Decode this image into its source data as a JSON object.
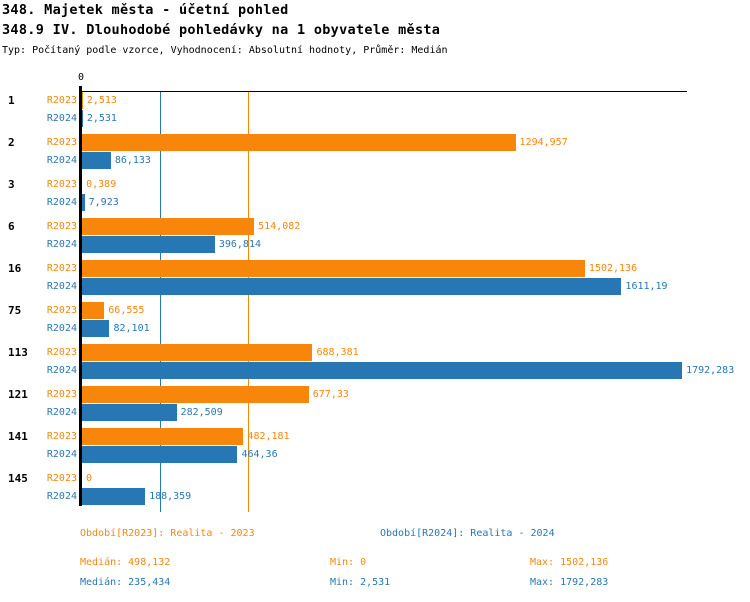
{
  "header": {
    "title_line1": "348. Majetek města - účetní pohled",
    "title_line2": "348.9 IV. Dlouhodobé pohledávky na 1 obyvatele města",
    "subtitle": "Typ: Počítaný podle vzorce, Vyhodnocení: Absolutní hodnoty, Průměr: Medián"
  },
  "colors": {
    "r2023": "#F8860B",
    "r2024": "#2777B5",
    "axis": "#000000"
  },
  "chart_data": {
    "type": "bar",
    "orientation": "horizontal",
    "title": "348.9 IV. Dlouhodobé pohledávky na 1 obyvatele města",
    "xlabel": "",
    "ylabel": "",
    "xlim": [
      0,
      1810
    ],
    "zero_tick_label": "0",
    "grid": false,
    "legend_position": "bottom",
    "categories": [
      "1",
      "2",
      "3",
      "6",
      "16",
      "75",
      "113",
      "121",
      "141",
      "145"
    ],
    "series": [
      {
        "name": "R2023",
        "color": "#F8860B",
        "values": [
          2.513,
          1294.957,
          0.389,
          514.082,
          1502.136,
          66.555,
          688.381,
          677.33,
          482.181,
          0
        ],
        "labels": [
          "2,513",
          "1294,957",
          "0,389",
          "514,082",
          "1502,136",
          "66,555",
          "688,381",
          "677,33",
          "482,181",
          "0"
        ],
        "median": 498.132
      },
      {
        "name": "R2024",
        "color": "#2777B5",
        "values": [
          2.531,
          86.133,
          7.923,
          396.814,
          1611.19,
          82.101,
          1792.283,
          282.509,
          464.36,
          188.359
        ],
        "labels": [
          "2,531",
          "86,133",
          "7,923",
          "396,814",
          "1611,19",
          "82,101",
          "1792,283",
          "282,509",
          "464,36",
          "188,359"
        ],
        "median": 235.434
      }
    ],
    "median_lines": [
      {
        "series": "R2023",
        "value": 498.132,
        "color": "#F8860B"
      },
      {
        "series": "R2024",
        "value": 235.434,
        "color": "#2777B5"
      }
    ]
  },
  "legend": {
    "r2023": {
      "period": "Období[R2023]: Realita - 2023",
      "median": "Medián: 498,132",
      "min": "Min: 0",
      "max": "Max: 1502,136"
    },
    "r2024": {
      "period": "Období[R2024]: Realita - 2024",
      "median": "Medián: 235,434",
      "min": "Min: 2,531",
      "max": "Max: 1792,283"
    }
  }
}
